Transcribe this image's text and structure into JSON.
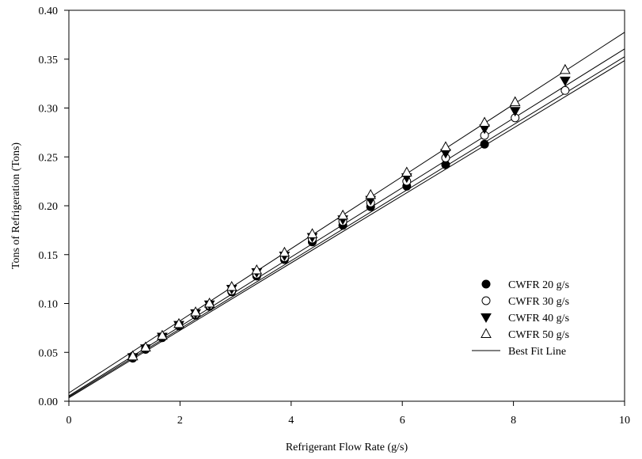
{
  "chart_data": {
    "type": "scatter",
    "title": "",
    "xlabel": "Refrigerant Flow Rate (g/s)",
    "ylabel": "Tons of Refrigeration (Tons)",
    "xlim": [
      0,
      10
    ],
    "ylim": [
      0,
      0.4
    ],
    "x_ticks": [
      0,
      2,
      4,
      6,
      8,
      10
    ],
    "x_tick_labels": [
      "0",
      "2",
      "4",
      "6",
      "8",
      "10"
    ],
    "y_ticks": [
      0,
      0.05,
      0.1,
      0.15,
      0.2,
      0.25,
      0.3,
      0.35,
      0.4
    ],
    "y_tick_labels": [
      "0.00",
      "0.05",
      "0.10",
      "0.15",
      "0.20",
      "0.25",
      "0.30",
      "0.35",
      "0.40"
    ],
    "grid": false,
    "legend_position": "lower-right",
    "series": [
      {
        "name": "CWFR 20 g/s",
        "marker": "filled-circle",
        "color": "#000000",
        "x": [
          1.15,
          1.38,
          1.68,
          1.98,
          2.28,
          2.53,
          2.93,
          3.38,
          3.88,
          4.38,
          4.93,
          5.43,
          6.08,
          6.78,
          7.48
        ],
        "y": [
          0.044,
          0.053,
          0.065,
          0.077,
          0.088,
          0.097,
          0.112,
          0.128,
          0.145,
          0.163,
          0.18,
          0.199,
          0.22,
          0.242,
          0.263
        ],
        "fit": {
          "slope": 0.0345,
          "intercept": 0.0035
        }
      },
      {
        "name": "CWFR 30 g/s",
        "marker": "open-circle",
        "color": "#000000",
        "x": [
          1.15,
          1.38,
          1.68,
          1.98,
          2.28,
          2.53,
          2.93,
          3.38,
          3.88,
          4.38,
          4.93,
          5.43,
          6.08,
          6.78,
          7.48,
          8.03,
          8.93
        ],
        "y": [
          0.045,
          0.054,
          0.066,
          0.078,
          0.089,
          0.098,
          0.113,
          0.13,
          0.147,
          0.166,
          0.184,
          0.203,
          0.225,
          0.249,
          0.272,
          0.29,
          0.318
        ],
        "fit": {
          "slope": 0.0348,
          "intercept": 0.0045
        }
      },
      {
        "name": "CWFR 40 g/s",
        "marker": "filled-triangle-down",
        "color": "#000000",
        "x": [
          1.15,
          1.38,
          1.68,
          1.98,
          2.28,
          2.53,
          2.93,
          3.38,
          3.88,
          4.38,
          4.93,
          5.43,
          6.08,
          6.78,
          7.48,
          8.03,
          8.93
        ],
        "y": [
          0.045,
          0.054,
          0.066,
          0.078,
          0.09,
          0.099,
          0.115,
          0.132,
          0.149,
          0.168,
          0.186,
          0.206,
          0.229,
          0.254,
          0.279,
          0.297,
          0.328
        ],
        "fit": {
          "slope": 0.0355,
          "intercept": 0.0055
        }
      },
      {
        "name": "CWFR 50 g/s",
        "marker": "open-triangle-up",
        "color": "#000000",
        "x": [
          1.15,
          1.38,
          1.68,
          1.98,
          2.28,
          2.53,
          2.93,
          3.38,
          3.88,
          4.38,
          4.93,
          5.43,
          6.08,
          6.78,
          7.48,
          8.03,
          8.93
        ],
        "y": [
          0.046,
          0.055,
          0.067,
          0.079,
          0.091,
          0.1,
          0.117,
          0.134,
          0.152,
          0.171,
          0.19,
          0.211,
          0.234,
          0.26,
          0.285,
          0.306,
          0.339
        ],
        "fit": {
          "slope": 0.0369,
          "intercept": 0.0085
        }
      }
    ],
    "fit_line_label": "Best Fit Line"
  }
}
